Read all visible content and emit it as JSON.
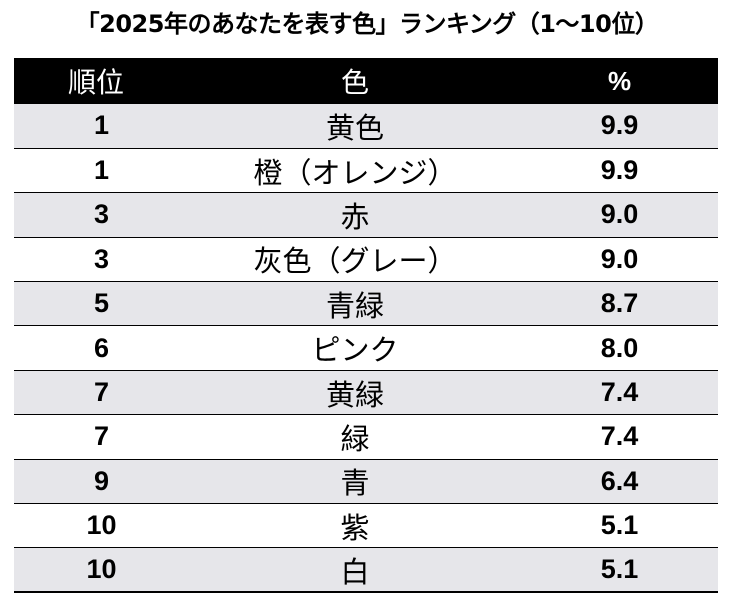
{
  "title": "「2025年のあなたを表す色」ランキング（1〜10位）",
  "table": {
    "headers": {
      "rank": "順位",
      "color": "色",
      "percent": "%"
    },
    "rows": [
      {
        "rank": "1",
        "color": "黄色",
        "percent": "9.9"
      },
      {
        "rank": "1",
        "color": "橙（オレンジ）",
        "percent": "9.9"
      },
      {
        "rank": "3",
        "color": "赤",
        "percent": "9.0"
      },
      {
        "rank": "3",
        "color": "灰色（グレー）",
        "percent": "9.0"
      },
      {
        "rank": "5",
        "color": "青緑",
        "percent": "8.7"
      },
      {
        "rank": "6",
        "color": "ピンク",
        "percent": "8.0"
      },
      {
        "rank": "7",
        "color": "黄緑",
        "percent": "7.4"
      },
      {
        "rank": "7",
        "color": "緑",
        "percent": "7.4"
      },
      {
        "rank": "9",
        "color": "青",
        "percent": "6.4"
      },
      {
        "rank": "10",
        "color": "紫",
        "percent": "5.1"
      },
      {
        "rank": "10",
        "color": "白",
        "percent": "5.1"
      }
    ]
  },
  "colors": {
    "header_background": "#000000",
    "header_text": "#ffffff",
    "row_shade": "#e6e6ea",
    "row_plain": "#ffffff",
    "rule": "#000000"
  }
}
